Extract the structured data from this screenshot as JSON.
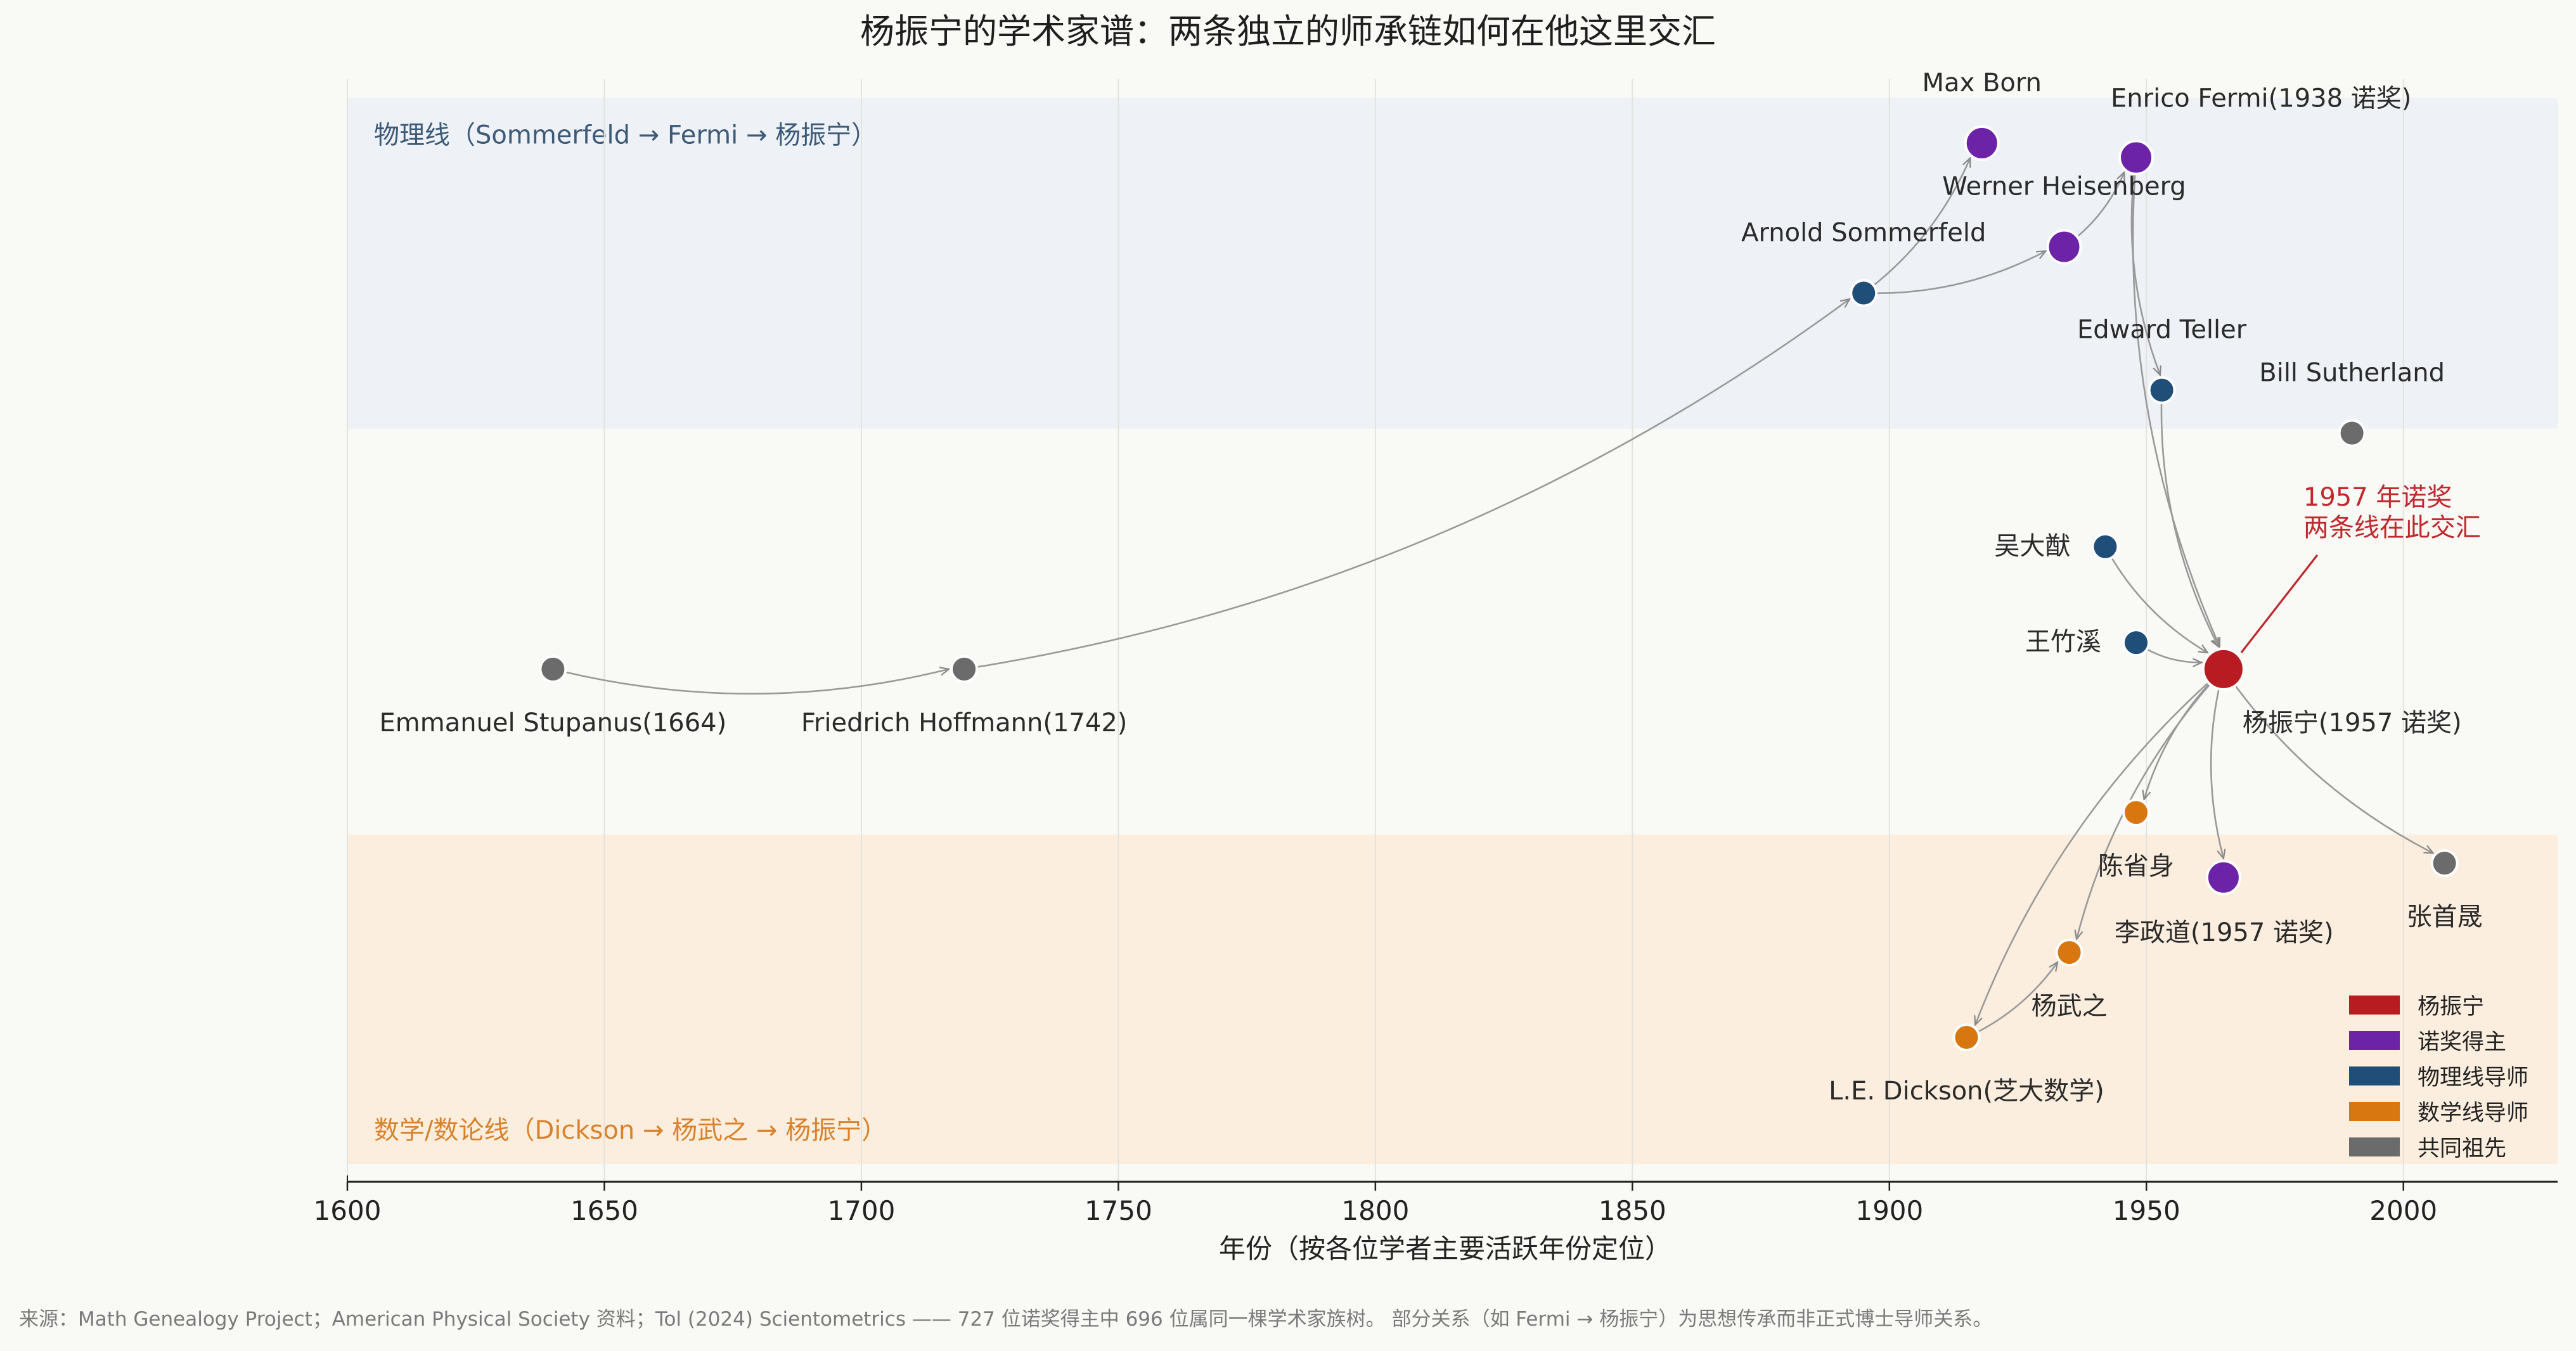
{
  "chart_data": {
    "type": "scatter",
    "title": "杨振宁的学术家谱：两条独立的师承链如何在他这里交汇",
    "xlabel": "年份（按各位学者主要活跃年份定位）",
    "xlim": [
      1600,
      2030
    ],
    "xticks": [
      1600,
      1650,
      1700,
      1750,
      1800,
      1850,
      1900,
      1950,
      2000
    ],
    "ylim": [
      0,
      100
    ],
    "grid": "x",
    "bands": [
      {
        "label": "物理线（Sommerfeld → Fermi → 杨振宁）",
        "y_range": [
          68.3,
          98.3
        ],
        "color": "#eef2f6",
        "text_color": "#3c5a78"
      },
      {
        "label": "数学/数论线（Dickson → 杨武之 → 杨振宁）",
        "y_range": [
          1.6,
          31.5
        ],
        "color": "#fbeedf",
        "text_color": "#d9822b"
      }
    ],
    "nodes": [
      {
        "id": "yang",
        "label": "杨振宁(1957 诺奖)",
        "x": 1965,
        "y": 46.5,
        "category": "杨振宁"
      },
      {
        "id": "born",
        "label": "Max Born",
        "x": 1918,
        "y": 94.2,
        "category": "诺奖得主"
      },
      {
        "id": "fermi",
        "label": "Enrico Fermi(1938 诺奖)",
        "x": 1948,
        "y": 92.9,
        "category": "诺奖得主"
      },
      {
        "id": "heisenberg",
        "label": "Werner Heisenberg",
        "x": 1934,
        "y": 84.8,
        "category": "诺奖得主"
      },
      {
        "id": "sommerfeld",
        "label": "Arnold Sommerfeld",
        "x": 1895,
        "y": 80.6,
        "category": "物理线导师"
      },
      {
        "id": "teller",
        "label": "Edward Teller",
        "x": 1953,
        "y": 71.8,
        "category": "物理线导师"
      },
      {
        "id": "sutherland",
        "label": "Bill Sutherland",
        "x": 1990,
        "y": 67.9,
        "category": "共同祖先"
      },
      {
        "id": "wu",
        "label": "吴大猷",
        "x": 1942,
        "y": 57.6,
        "category": "物理线导师"
      },
      {
        "id": "wang",
        "label": "王竹溪",
        "x": 1948,
        "y": 48.9,
        "category": "物理线导师"
      },
      {
        "id": "stupanus",
        "label": "Emmanuel Stupanus(1664)",
        "x": 1640,
        "y": 46.5,
        "category": "共同祖先"
      },
      {
        "id": "hoffmann",
        "label": "Friedrich Hoffmann(1742)",
        "x": 1720,
        "y": 46.5,
        "category": "共同祖先"
      },
      {
        "id": "chen",
        "label": "陈省身",
        "x": 1948,
        "y": 33.5,
        "category": "数学线导师"
      },
      {
        "id": "lee",
        "label": "李政道(1957 诺奖)",
        "x": 1965,
        "y": 27.6,
        "category": "诺奖得主"
      },
      {
        "id": "zhang",
        "label": "张首晟",
        "x": 2008,
        "y": 28.9,
        "category": "共同祖先"
      },
      {
        "id": "yangwuzhi",
        "label": "杨武之",
        "x": 1935,
        "y": 20.8,
        "category": "数学线导师"
      },
      {
        "id": "dickson",
        "label": "L.E. Dickson(芝大数学)",
        "x": 1915,
        "y": 13.1,
        "category": "数学线导师"
      }
    ],
    "edges": [
      [
        "stupanus",
        "hoffmann"
      ],
      [
        "hoffmann",
        "sommerfeld"
      ],
      [
        "sommerfeld",
        "born"
      ],
      [
        "sommerfeld",
        "heisenberg"
      ],
      [
        "heisenberg",
        "fermi"
      ],
      [
        "fermi",
        "teller"
      ],
      [
        "fermi",
        "yang"
      ],
      [
        "teller",
        "yang"
      ],
      [
        "wu",
        "yang"
      ],
      [
        "wang",
        "yang"
      ],
      [
        "yang",
        "chen"
      ],
      [
        "yang",
        "lee"
      ],
      [
        "yang",
        "zhang"
      ],
      [
        "yang",
        "yangwuzhi"
      ],
      [
        "yang",
        "dickson"
      ],
      [
        "dickson",
        "yangwuzhi"
      ]
    ],
    "annotation": {
      "lines": [
        "1957 年诺奖",
        "两条线在此交汇"
      ],
      "color": "#c0282d",
      "target": "yang"
    },
    "legend": {
      "position": "bottom-right",
      "items": [
        {
          "label": "杨振宁",
          "color": "#b81c22"
        },
        {
          "label": "诺奖得主",
          "color": "#6c23a8"
        },
        {
          "label": "物理线导师",
          "color": "#1f4e79"
        },
        {
          "label": "数学线导师",
          "color": "#d8760f"
        },
        {
          "label": "共同祖先",
          "color": "#6b6b6b"
        }
      ]
    },
    "source": "来源：Math Genealogy Project；American Physical Society 资料；Tol (2024) Scientometrics —— 727 位诺奖得主中 696 位属同一棵学术家族树。 部分关系（如 Fermi → 杨振宁）为思想传承而非正式博士导师关系。"
  }
}
